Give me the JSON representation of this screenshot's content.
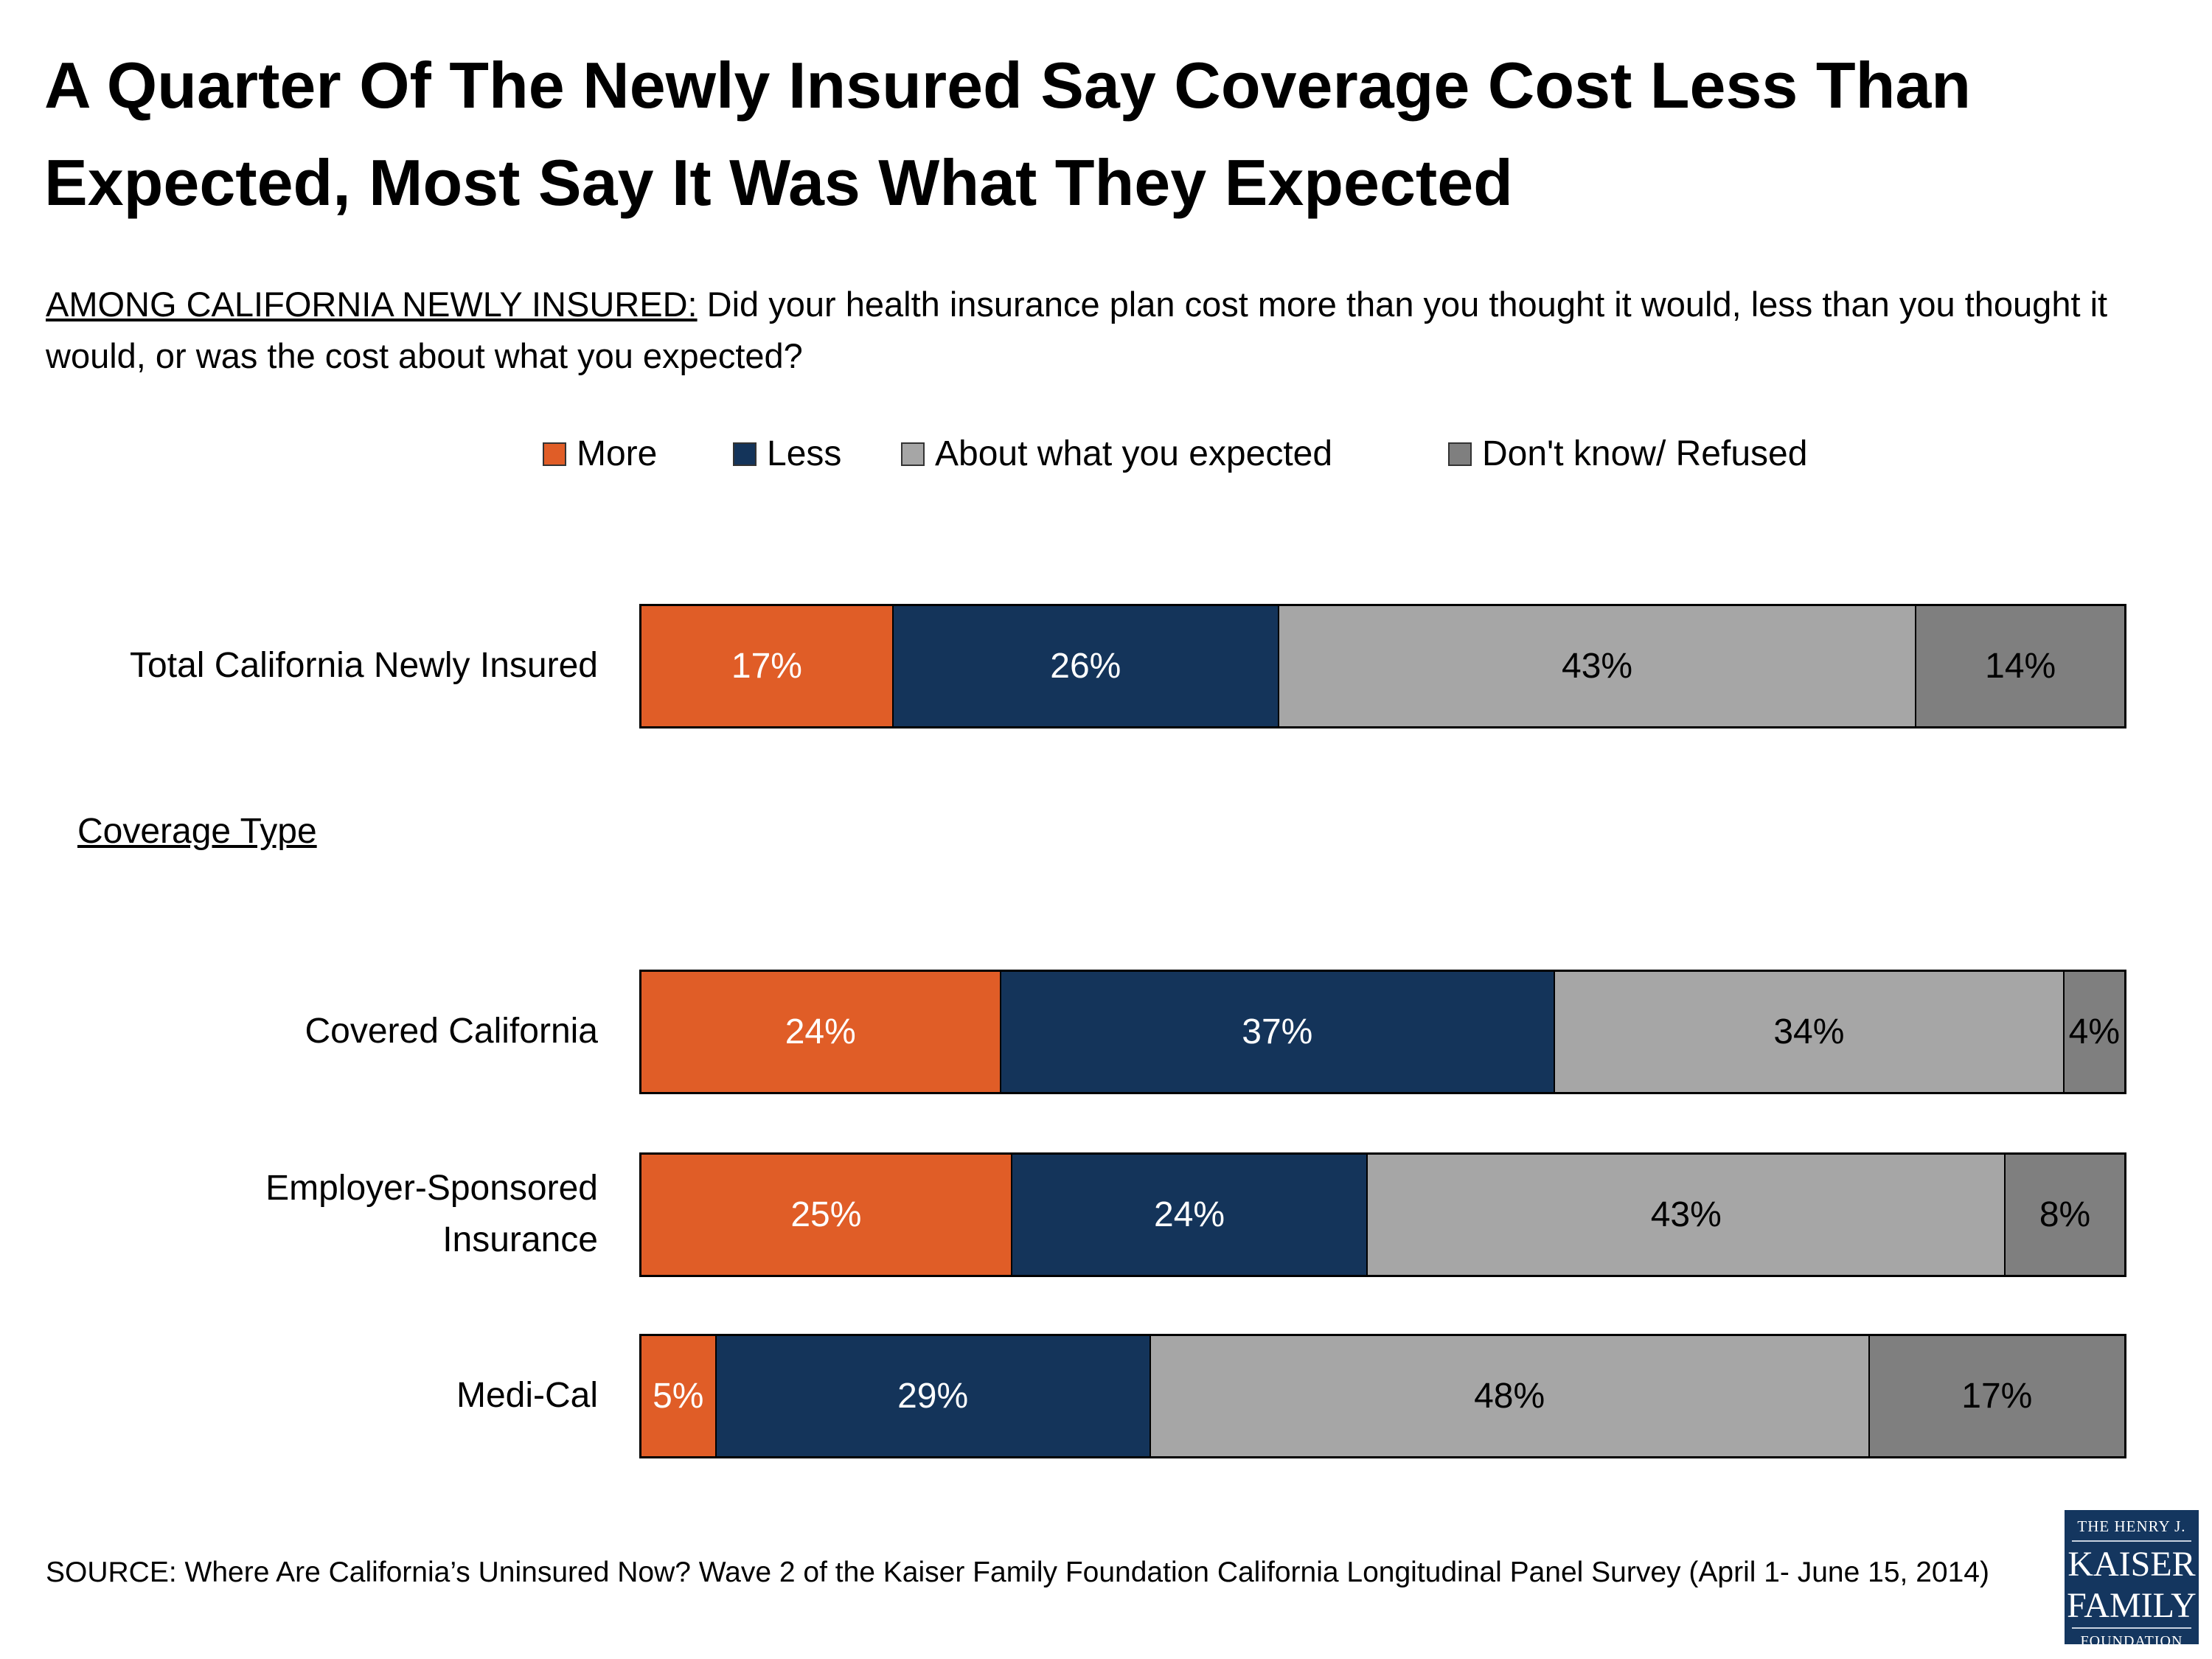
{
  "title": "A Quarter Of The Newly Insured Say Coverage Cost Less Than Expected, Most Say It Was What They Expected",
  "subtitle": {
    "prefix": "AMONG CALIFORNIA NEWLY INSURED:",
    "question": " Did your health insurance plan cost more than you thought it would, less than you thought it would, or was the cost about what you expected?"
  },
  "section_label": "Coverage Type",
  "source": "SOURCE: Where Are California’s Uninsured Now? Wave 2 of the Kaiser Family Foundation California Longitudinal Panel Survey (April 1- June 15, 2014)",
  "logo": {
    "line1": "THE HENRY J.",
    "line2": "KAISER",
    "line3": "FAMILY",
    "line4": "FOUNDATION"
  },
  "chart_data": {
    "type": "bar",
    "orientation": "horizontal",
    "stacked": true,
    "legend_position": "top",
    "grid": false,
    "categories": [
      "Total California Newly Insured",
      "Covered California",
      "Employer-Sponsored Insurance",
      "Medi-Cal"
    ],
    "series": [
      {
        "name": "More",
        "color": "#e05d27",
        "label_color": "#ffffff",
        "values": [
          17,
          24,
          25,
          5
        ]
      },
      {
        "name": "Less",
        "color": "#14345a",
        "label_color": "#ffffff",
        "values": [
          26,
          37,
          24,
          29
        ]
      },
      {
        "name": "About what you expected",
        "color": "#a6a6a6",
        "label_color": "#000000",
        "values": [
          43,
          34,
          43,
          48
        ]
      },
      {
        "name": "Don't know/ Refused",
        "color": "#7f7f7f",
        "label_color": "#000000",
        "values": [
          14,
          4,
          8,
          17
        ]
      }
    ],
    "value_suffix": "%"
  }
}
